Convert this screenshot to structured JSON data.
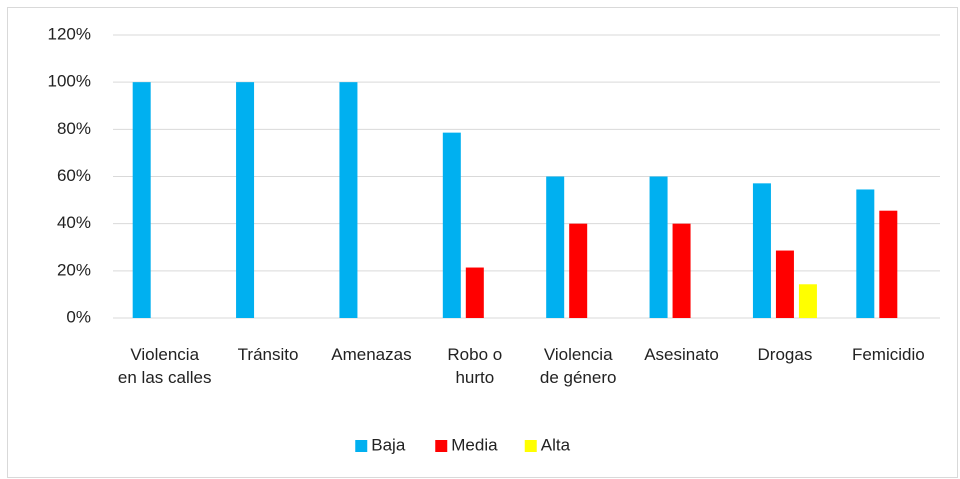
{
  "chart_data": {
    "type": "bar",
    "categories": [
      "Violencia\nen las calles",
      "Tránsito",
      "Amenazas",
      "Robo o\nhurto",
      "Violencia\nde género",
      "Asesinato",
      "Drogas",
      "Femicidio"
    ],
    "series": [
      {
        "name": "Baja",
        "color": "#00b0f0",
        "values": [
          100,
          100,
          100,
          78.6,
          60,
          60,
          57.1,
          54.5
        ]
      },
      {
        "name": "Media",
        "color": "#ff0000",
        "values": [
          0,
          0,
          0,
          21.4,
          40,
          40,
          28.6,
          45.5
        ]
      },
      {
        "name": "Alta",
        "color": "#ffff00",
        "values": [
          0,
          0,
          0,
          0,
          0,
          0,
          14.3,
          0
        ]
      }
    ],
    "ylim": [
      0,
      120
    ],
    "yticks": [
      {
        "value": 0,
        "label": "0%"
      },
      {
        "value": 20,
        "label": "20%"
      },
      {
        "value": 40,
        "label": "40%"
      },
      {
        "value": 60,
        "label": "60%"
      },
      {
        "value": 80,
        "label": "80%"
      },
      {
        "value": 100,
        "label": "100%"
      },
      {
        "value": 120,
        "label": "120%"
      }
    ],
    "grid": true,
    "legend": "bottom"
  }
}
